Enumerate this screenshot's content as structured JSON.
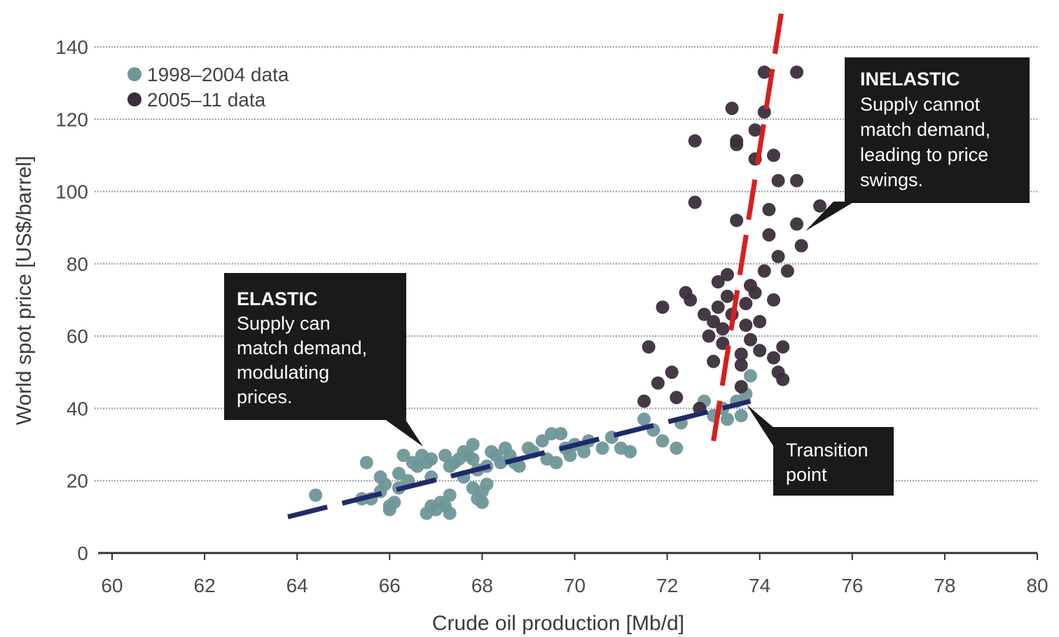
{
  "chart_data": {
    "type": "scatter",
    "xlabel": "Crude oil production [Mb/d]",
    "ylabel": "World spot price [US$/barrel]",
    "xlim": [
      60,
      80
    ],
    "ylim": [
      0,
      145
    ],
    "xticks": [
      60,
      62,
      64,
      66,
      68,
      70,
      72,
      74,
      76,
      78,
      80
    ],
    "yticks": [
      0,
      20,
      40,
      60,
      80,
      100,
      120,
      140
    ],
    "grid": "horizontal dotted",
    "legend_position": "top-left",
    "series": [
      {
        "name": "1998–2004 data",
        "color": "#6f9699",
        "points": [
          [
            64.4,
            16
          ],
          [
            65.4,
            15
          ],
          [
            65.5,
            25
          ],
          [
            65.6,
            15
          ],
          [
            65.8,
            17
          ],
          [
            65.8,
            21
          ],
          [
            65.9,
            19
          ],
          [
            66.0,
            13
          ],
          [
            66.0,
            12
          ],
          [
            66.1,
            14
          ],
          [
            66.2,
            18
          ],
          [
            66.2,
            22
          ],
          [
            66.3,
            27
          ],
          [
            66.4,
            20
          ],
          [
            66.5,
            25
          ],
          [
            66.6,
            24
          ],
          [
            66.7,
            27
          ],
          [
            66.8,
            25
          ],
          [
            66.9,
            26
          ],
          [
            66.9,
            21
          ],
          [
            66.8,
            11
          ],
          [
            66.9,
            13
          ],
          [
            67.0,
            12
          ],
          [
            67.1,
            14
          ],
          [
            67.2,
            13
          ],
          [
            67.3,
            16
          ],
          [
            67.3,
            11
          ],
          [
            67.2,
            27
          ],
          [
            67.3,
            24
          ],
          [
            67.4,
            25
          ],
          [
            67.5,
            26
          ],
          [
            67.6,
            28
          ],
          [
            67.6,
            21
          ],
          [
            67.7,
            27
          ],
          [
            67.8,
            30
          ],
          [
            67.8,
            26
          ],
          [
            67.9,
            23
          ],
          [
            67.8,
            18
          ],
          [
            67.9,
            15
          ],
          [
            68.0,
            14
          ],
          [
            68.0,
            17
          ],
          [
            68.1,
            19
          ],
          [
            68.1,
            24
          ],
          [
            68.2,
            28
          ],
          [
            68.3,
            27
          ],
          [
            68.4,
            25
          ],
          [
            68.5,
            29
          ],
          [
            68.6,
            27
          ],
          [
            68.7,
            25
          ],
          [
            68.8,
            24
          ],
          [
            69.0,
            29
          ],
          [
            69.1,
            28
          ],
          [
            69.3,
            31
          ],
          [
            69.4,
            26
          ],
          [
            69.5,
            33
          ],
          [
            69.6,
            25
          ],
          [
            69.7,
            33
          ],
          [
            69.8,
            29
          ],
          [
            69.9,
            27
          ],
          [
            70.0,
            30
          ],
          [
            70.2,
            28
          ],
          [
            70.3,
            31
          ],
          [
            70.6,
            29
          ],
          [
            70.8,
            32
          ],
          [
            71.0,
            29
          ],
          [
            71.2,
            28
          ],
          [
            71.5,
            37
          ],
          [
            71.7,
            34
          ],
          [
            71.9,
            31
          ],
          [
            72.2,
            29
          ],
          [
            72.3,
            36
          ],
          [
            72.8,
            42
          ],
          [
            73.0,
            38
          ],
          [
            73.2,
            40
          ],
          [
            73.3,
            37
          ],
          [
            73.5,
            42
          ],
          [
            73.6,
            38
          ],
          [
            73.7,
            44
          ],
          [
            73.8,
            49
          ]
        ]
      },
      {
        "name": "2005–11 data",
        "color": "#3a2e3a",
        "points": [
          [
            71.5,
            42
          ],
          [
            71.6,
            57
          ],
          [
            71.8,
            47
          ],
          [
            71.9,
            68
          ],
          [
            72.1,
            50
          ],
          [
            72.2,
            43
          ],
          [
            72.4,
            72
          ],
          [
            72.5,
            70
          ],
          [
            72.6,
            114
          ],
          [
            72.6,
            97
          ],
          [
            72.7,
            40
          ],
          [
            72.8,
            66
          ],
          [
            72.9,
            60
          ],
          [
            73.0,
            53
          ],
          [
            73.0,
            64
          ],
          [
            73.1,
            75
          ],
          [
            73.1,
            68
          ],
          [
            73.2,
            62
          ],
          [
            73.2,
            58
          ],
          [
            73.3,
            71
          ],
          [
            73.3,
            77
          ],
          [
            73.4,
            66
          ],
          [
            73.4,
            123
          ],
          [
            73.5,
            114
          ],
          [
            73.5,
            113
          ],
          [
            73.5,
            92
          ],
          [
            73.6,
            52
          ],
          [
            73.6,
            55
          ],
          [
            73.6,
            46
          ],
          [
            73.7,
            63
          ],
          [
            73.7,
            69
          ],
          [
            73.8,
            59
          ],
          [
            73.8,
            74
          ],
          [
            73.9,
            72
          ],
          [
            73.9,
            117
          ],
          [
            73.9,
            109
          ],
          [
            74.0,
            56
          ],
          [
            74.0,
            64
          ],
          [
            74.1,
            122
          ],
          [
            74.1,
            133
          ],
          [
            74.1,
            78
          ],
          [
            74.2,
            95
          ],
          [
            74.2,
            88
          ],
          [
            74.3,
            110
          ],
          [
            74.3,
            70
          ],
          [
            74.3,
            54
          ],
          [
            74.4,
            103
          ],
          [
            74.4,
            82
          ],
          [
            74.4,
            50
          ],
          [
            74.5,
            57
          ],
          [
            74.5,
            48
          ],
          [
            74.6,
            78
          ],
          [
            74.8,
            133
          ],
          [
            74.8,
            103
          ],
          [
            74.8,
            91
          ],
          [
            74.9,
            85
          ],
          [
            75.3,
            96
          ]
        ]
      }
    ],
    "trend_lines": [
      {
        "name": "elastic",
        "color": "#1f2a6b",
        "from": [
          63.8,
          10
        ],
        "to": [
          73.8,
          42
        ]
      },
      {
        "name": "inelastic",
        "color": "#d81f1f",
        "from": [
          73.0,
          31
        ],
        "to": [
          74.5,
          152
        ]
      }
    ],
    "annotations": [
      {
        "title": "ELASTIC",
        "lines": [
          "Supply can",
          "match demand,",
          "modulating",
          "prices."
        ]
      },
      {
        "title": "INELASTIC",
        "lines": [
          "Supply cannot",
          "match demand,",
          "leading to price",
          "swings."
        ]
      },
      {
        "title": "",
        "lines": [
          "Transition",
          "point"
        ]
      }
    ]
  }
}
